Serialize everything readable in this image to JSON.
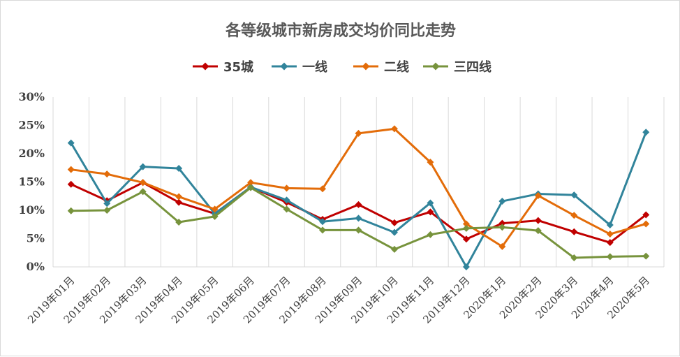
{
  "chart_data": {
    "type": "line",
    "title": "各等级城市新房成交均价同比走势",
    "xlabel": "",
    "ylabel": "",
    "ylim": [
      0,
      30
    ],
    "y_ticks": [
      "0%",
      "5%",
      "10%",
      "15%",
      "20%",
      "25%",
      "30%"
    ],
    "legend_position": "top",
    "grid": "vertical",
    "categories": [
      "2019年01月",
      "2019年02月",
      "2019年03月",
      "2019年04月",
      "2019年05月",
      "2019年06月",
      "2019年07月",
      "2019年08月",
      "2019年09月",
      "2019年10月",
      "2019年11月",
      "2019年12月",
      "2020年1月",
      "2020年2月",
      "2020年3月",
      "2020年4月",
      "2020年5月"
    ],
    "series": [
      {
        "name": "35城",
        "color": "#c00000",
        "values": [
          14.6,
          11.7,
          14.9,
          11.4,
          9.4,
          14.1,
          11.4,
          8.4,
          11.0,
          7.8,
          9.7,
          4.9,
          7.7,
          8.2,
          6.2,
          4.3,
          9.2
        ]
      },
      {
        "name": "一线",
        "color": "#31849b",
        "values": [
          21.9,
          11.2,
          17.7,
          17.4,
          9.4,
          14.1,
          11.8,
          8.0,
          8.6,
          6.1,
          11.3,
          0.0,
          11.6,
          12.9,
          12.7,
          7.4,
          23.8
        ]
      },
      {
        "name": "二线",
        "color": "#e36c09",
        "values": [
          17.2,
          16.4,
          14.9,
          12.4,
          10.2,
          14.9,
          13.9,
          13.8,
          23.6,
          24.4,
          18.5,
          7.6,
          3.6,
          12.6,
          9.1,
          5.8,
          7.6
        ]
      },
      {
        "name": "三四线",
        "color": "#77933c",
        "values": [
          9.9,
          10.0,
          13.3,
          7.9,
          8.9,
          14.0,
          10.2,
          6.5,
          6.5,
          3.1,
          5.7,
          6.8,
          7.0,
          6.4,
          1.6,
          1.8,
          1.9
        ]
      }
    ]
  }
}
